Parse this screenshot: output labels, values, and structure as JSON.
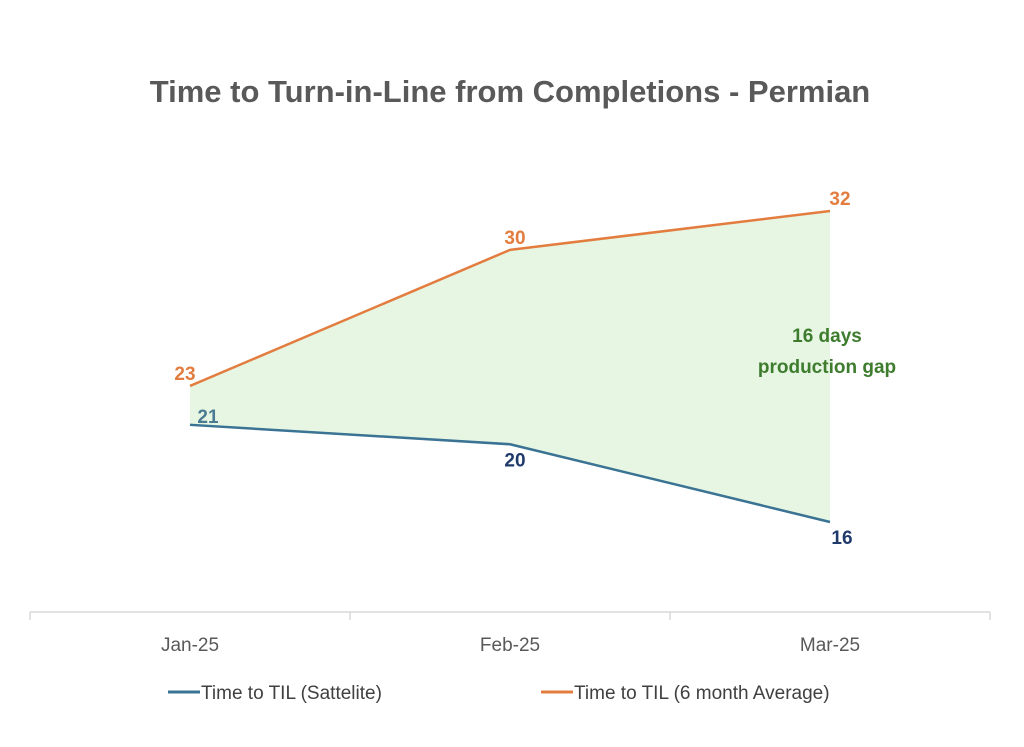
{
  "chart_data": {
    "type": "line",
    "title": "Time to Turn-in-Line from Completions - Permian",
    "xlabel": "",
    "ylabel": "",
    "categories": [
      "Jan-25",
      "Feb-25",
      "Mar-25"
    ],
    "ylim": [
      0,
      40
    ],
    "grid": false,
    "legend_position": "bottom",
    "series": [
      {
        "name": "Time to TIL (Sattelite)",
        "values": [
          21,
          20,
          16
        ],
        "color": "#3A7393",
        "label_colors": [
          "#4B7B93",
          "#1F3A6B",
          "#1F3A6B"
        ]
      },
      {
        "name": "Time to TIL (6 month Average)",
        "values": [
          23,
          30,
          32
        ],
        "color": "#E37D3F",
        "label_colors": [
          "#E37D3F",
          "#E37D3F",
          "#E37D3F"
        ]
      }
    ],
    "gap_fill_color": "#E6F6E2",
    "annotation": {
      "lines": [
        "16 days",
        "production gap"
      ],
      "color": "#3E7C2E"
    }
  }
}
